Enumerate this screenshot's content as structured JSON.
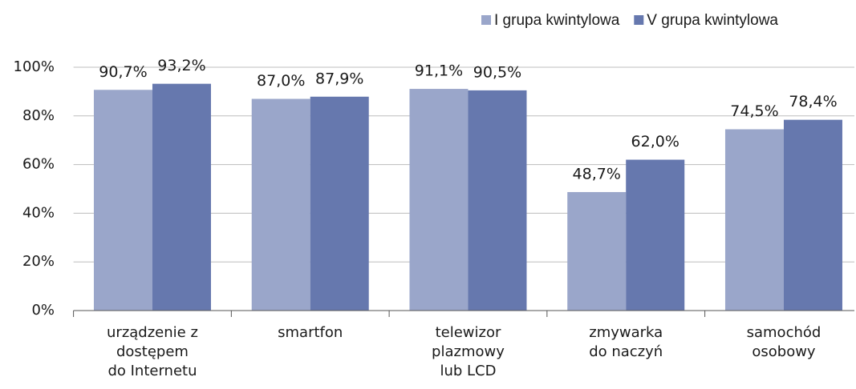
{
  "chart_data": {
    "type": "bar",
    "categories": [
      [
        "urządzenie z",
        "dostępem",
        "do Internetu"
      ],
      [
        "smartfon"
      ],
      [
        "telewizor",
        "plazmowy",
        "lub LCD"
      ],
      [
        "zmywarka",
        "do naczyń"
      ],
      [
        "samochód",
        "osobowy"
      ]
    ],
    "series": [
      {
        "name": "I grupa kwintylowa",
        "color": "#9aa6ca",
        "values": [
          90.7,
          87.0,
          91.1,
          48.7,
          74.5
        ],
        "value_labels": [
          "90,7%",
          "87,0%",
          "91,1%",
          "48,7%",
          "74,5%"
        ]
      },
      {
        "name": "V grupa kwintylowa",
        "color": "#6678ae",
        "values": [
          93.2,
          87.9,
          90.5,
          62.0,
          78.4
        ],
        "value_labels": [
          "93,2%",
          "87,9%",
          "90,5%",
          "62,0%",
          "78,4%"
        ]
      }
    ],
    "ylim": [
      0,
      100
    ],
    "yticks": [
      {
        "value": 0,
        "label": "0%"
      },
      {
        "value": 20,
        "label": "20%"
      },
      {
        "value": 40,
        "label": "40%"
      },
      {
        "value": 60,
        "label": "60%"
      },
      {
        "value": 80,
        "label": "80%"
      },
      {
        "value": 100,
        "label": "100%"
      }
    ],
    "grid": true,
    "legend": "top-right"
  }
}
